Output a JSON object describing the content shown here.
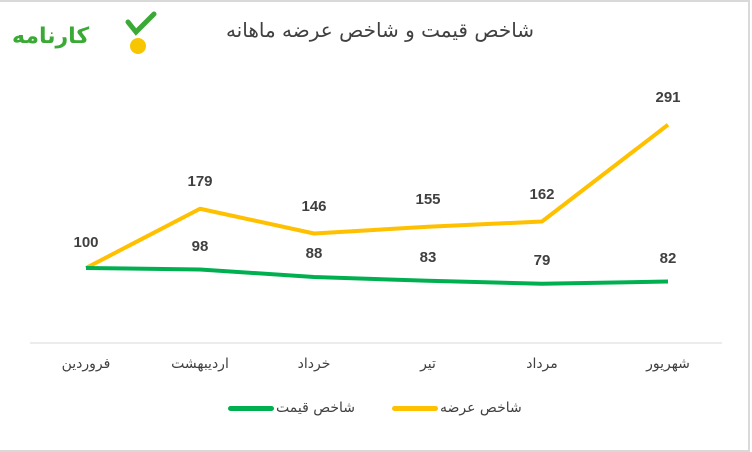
{
  "brand": {
    "name": "کارنامه",
    "colors": {
      "green": "#3aa935",
      "yellow": "#f7c600"
    }
  },
  "title": "شاخص قیمت و شاخص عرضه ماهانه",
  "chart_data": {
    "type": "line",
    "title": "شاخص قیمت و شاخص عرضه ماهانه",
    "categories": [
      "فروردین",
      "اردیبهشت",
      "خرداد",
      "تیر",
      "مرداد",
      "شهریور"
    ],
    "series": [
      {
        "name": "شاخص عرضه",
        "color": "#ffc000",
        "values": [
          100,
          179,
          146,
          155,
          162,
          291
        ]
      },
      {
        "name": "شاخص قیمت",
        "color": "#00b050",
        "values": [
          100,
          98,
          88,
          83,
          79,
          82
        ]
      }
    ],
    "xlabel": "",
    "ylabel": "",
    "ylim": [
      0,
      300
    ],
    "grid": false,
    "legend_position": "bottom",
    "data_labels": true
  },
  "legend": [
    {
      "label": "شاخص عرضه",
      "color": "#ffc000"
    },
    {
      "label": "شاخص قیمت",
      "color": "#00b050"
    }
  ]
}
